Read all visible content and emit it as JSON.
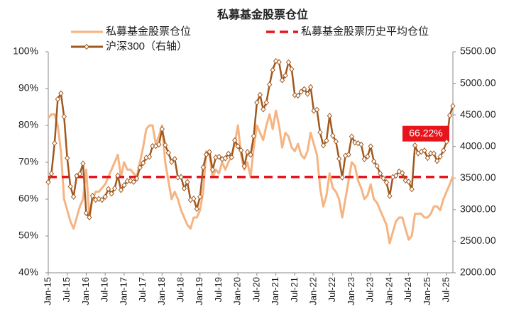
{
  "chart_data": {
    "type": "line",
    "title": "私募基金股票仓位",
    "categories": [
      "Jan-15",
      null,
      null,
      null,
      null,
      null,
      "Jul-15",
      null,
      null,
      null,
      null,
      null,
      "Jan-16",
      null,
      null,
      null,
      null,
      null,
      "Jul-16",
      null,
      null,
      null,
      null,
      null,
      "Jan-17",
      null,
      null,
      null,
      null,
      null,
      "Jul-17",
      null,
      null,
      null,
      null,
      null,
      "Jan-18",
      null,
      null,
      null,
      null,
      null,
      "Jul-18",
      null,
      null,
      null,
      null,
      null,
      "Jan-19",
      null,
      null,
      null,
      null,
      null,
      "Jul-19",
      null,
      null,
      null,
      null,
      null,
      "Jan-20",
      null,
      null,
      null,
      null,
      null,
      "Jul-20",
      null,
      null,
      null,
      null,
      null,
      "Jan-21",
      null,
      null,
      null,
      null,
      null,
      "Jul-21",
      null,
      null,
      null,
      null,
      null,
      "Jan-22",
      null,
      null,
      null,
      null,
      null,
      "Jul-22",
      null,
      null,
      null,
      null,
      null,
      "Jan-23",
      null,
      null,
      null,
      null,
      null,
      "Jul-23",
      null,
      null,
      null,
      null,
      null,
      "Jan-24",
      null,
      null,
      null,
      null,
      null,
      "Jul-24",
      null,
      null,
      null,
      null,
      null,
      "Jan-25",
      null,
      null,
      null,
      null,
      null,
      "Jul-25",
      null,
      null
    ],
    "ylim": [
      40,
      100
    ],
    "yticks": [
      {
        "value": 40,
        "label": "40%"
      },
      {
        "value": 50,
        "label": "50%"
      },
      {
        "value": 60,
        "label": "60%"
      },
      {
        "value": 70,
        "label": "70%"
      },
      {
        "value": 80,
        "label": "80%"
      },
      {
        "value": 90,
        "label": "90%"
      },
      {
        "value": 100,
        "label": "100%"
      }
    ],
    "y2lim": [
      2000,
      5500
    ],
    "y2ticks": [
      {
        "value": 2000,
        "label": "2000.00"
      },
      {
        "value": 2500,
        "label": "2500.00"
      },
      {
        "value": 3000,
        "label": "3000.00"
      },
      {
        "value": 3500,
        "label": "3500.00"
      },
      {
        "value": 4000,
        "label": "4000.00"
      },
      {
        "value": 4500,
        "label": "4500.00"
      },
      {
        "value": 5000,
        "label": "5000.00"
      },
      {
        "value": 5500,
        "label": "5500.00"
      }
    ],
    "series": [
      {
        "name": "私募基金股票仓位",
        "color": "#f5b482",
        "values": [
          82,
          83,
          83,
          80,
          73,
          60,
          57,
          54,
          52,
          55,
          58,
          60,
          68,
          55,
          60,
          62,
          62,
          63,
          64,
          66,
          68,
          70,
          72,
          66,
          70,
          68,
          68,
          67,
          66,
          70,
          74,
          79,
          80,
          80,
          75,
          77,
          80,
          70,
          65,
          60,
          62,
          60,
          57,
          55,
          53,
          52,
          55,
          55,
          57,
          62,
          73,
          72,
          66,
          68,
          67,
          70,
          68,
          70,
          72,
          75,
          80,
          72,
          68,
          70,
          66,
          74,
          80,
          78,
          76,
          80,
          83,
          79,
          84,
          80,
          74,
          78,
          77,
          74,
          73,
          75,
          72,
          71,
          73,
          78,
          75,
          72,
          63,
          58,
          61,
          67,
          63,
          62,
          60,
          55,
          60,
          65,
          70,
          69,
          65,
          63,
          60,
          61,
          64,
          60,
          59,
          57,
          55,
          53,
          48,
          51,
          54,
          55,
          55,
          52,
          49,
          50,
          56,
          56,
          56,
          55,
          55,
          56,
          58,
          58,
          57,
          60,
          62,
          64,
          66.22
        ],
        "value_labels": [
          null,
          null,
          null,
          null,
          null,
          null,
          null,
          null,
          null,
          null,
          null,
          null,
          null,
          null,
          null,
          null,
          null,
          null,
          null,
          null,
          null,
          null,
          null,
          null,
          null,
          null,
          null,
          null,
          null,
          null,
          null,
          null,
          null,
          null,
          null,
          null,
          null,
          null,
          null,
          null,
          null,
          null,
          null,
          null,
          null,
          null,
          null,
          null,
          null,
          null,
          null,
          null,
          null,
          null,
          null,
          null,
          null,
          null,
          null,
          null,
          null,
          null,
          null,
          null,
          null,
          null,
          null,
          null,
          null,
          null,
          null,
          null,
          null,
          null,
          null,
          null,
          null,
          null,
          null,
          null,
          null,
          null,
          null,
          null,
          null,
          null,
          null,
          null,
          null,
          null,
          null,
          null,
          null,
          null,
          null,
          null,
          null,
          null,
          null,
          null,
          null,
          null,
          null,
          null,
          null,
          null,
          null,
          null,
          null,
          null,
          null,
          null,
          null,
          null,
          null,
          null,
          null,
          null,
          null,
          null,
          null,
          null,
          null,
          null,
          null,
          null,
          null,
          null,
          "66.22%"
        ]
      },
      {
        "name": "私募基金股票历史平均仓位",
        "color": "#e8141c",
        "value": 66
      },
      {
        "name": "沪深300（右轴）",
        "color": "#a0581e",
        "axis": "y2",
        "values": [
          3434,
          3572,
          4051,
          4749,
          4841,
          4473,
          3816,
          3366,
          3203,
          3534,
          3566,
          3731,
          2946,
          2877,
          3218,
          3156,
          3170,
          3154,
          3203,
          3327,
          3253,
          3336,
          3538,
          3310,
          3387,
          3452,
          3456,
          3439,
          3492,
          3666,
          3737,
          3822,
          3837,
          4006,
          4006,
          4031,
          4275,
          4023,
          3899,
          3756,
          3802,
          3510,
          3517,
          3335,
          3438,
          3153,
          3173,
          3011,
          3202,
          3670,
          3872,
          3913,
          3630,
          3826,
          3836,
          3799,
          3814,
          3886,
          3828,
          4097,
          4003,
          3940,
          3686,
          3912,
          3868,
          4164,
          4695,
          4817,
          4588,
          4695,
          4980,
          5211,
          5352,
          5336,
          5049,
          5124,
          5332,
          5224,
          4812,
          4806,
          4866,
          4908,
          4832,
          4940,
          4564,
          4582,
          4223,
          4016,
          4091,
          4485,
          4170,
          4079,
          3804,
          3509,
          3854,
          3872,
          4157,
          4061,
          4051,
          4030,
          3799,
          3842,
          4002,
          3765,
          3690,
          3573,
          3496,
          3431,
          3216,
          3516,
          3537,
          3604,
          3580,
          3462,
          3442,
          3322,
          4017,
          3891,
          3916,
          3935,
          3817,
          3890,
          3888,
          3770,
          3840,
          3936,
          4075,
          4491,
          4640
        ]
      }
    ]
  }
}
